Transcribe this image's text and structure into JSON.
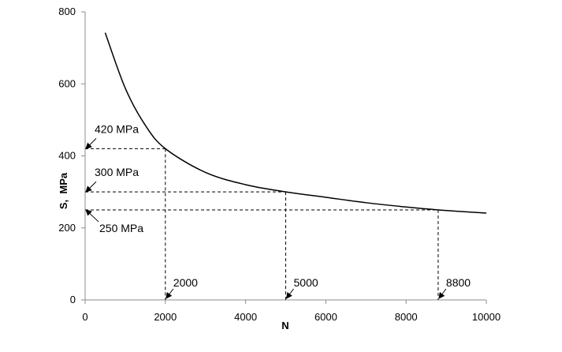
{
  "chart_data": {
    "type": "line",
    "title": "",
    "xlabel": "N",
    "ylabel": "S,  MPa",
    "xlim": [
      0,
      10000
    ],
    "ylim": [
      0,
      800
    ],
    "x_ticks": [
      "0",
      "2000",
      "4000",
      "6000",
      "8000",
      "10000"
    ],
    "y_ticks": [
      "0",
      "200",
      "400",
      "600",
      "800"
    ],
    "grid": false,
    "legend": "none",
    "series": [
      {
        "x": [
          500,
          1000,
          1500,
          2000,
          3000,
          4000,
          5000,
          6000,
          7000,
          8000,
          8800,
          10000
        ],
        "y": [
          742,
          588,
          485,
          420,
          354,
          320,
          300,
          285,
          270,
          258,
          250,
          241
        ]
      }
    ],
    "annotations": [
      {
        "text": "420 MPa",
        "x": 2000,
        "y": 420
      },
      {
        "text": "300 MPa",
        "x": 5000,
        "y": 300
      },
      {
        "text": "250 MPa",
        "x": 8800,
        "y": 250
      },
      {
        "text": "2000",
        "x": 2000,
        "y": 0
      },
      {
        "text": "5000",
        "x": 5000,
        "y": 0
      },
      {
        "text": "8800",
        "x": 8800,
        "y": 0
      }
    ],
    "colors": {
      "line": "#000000",
      "axis": "#8c8c8c",
      "dashed": "#000000"
    }
  }
}
